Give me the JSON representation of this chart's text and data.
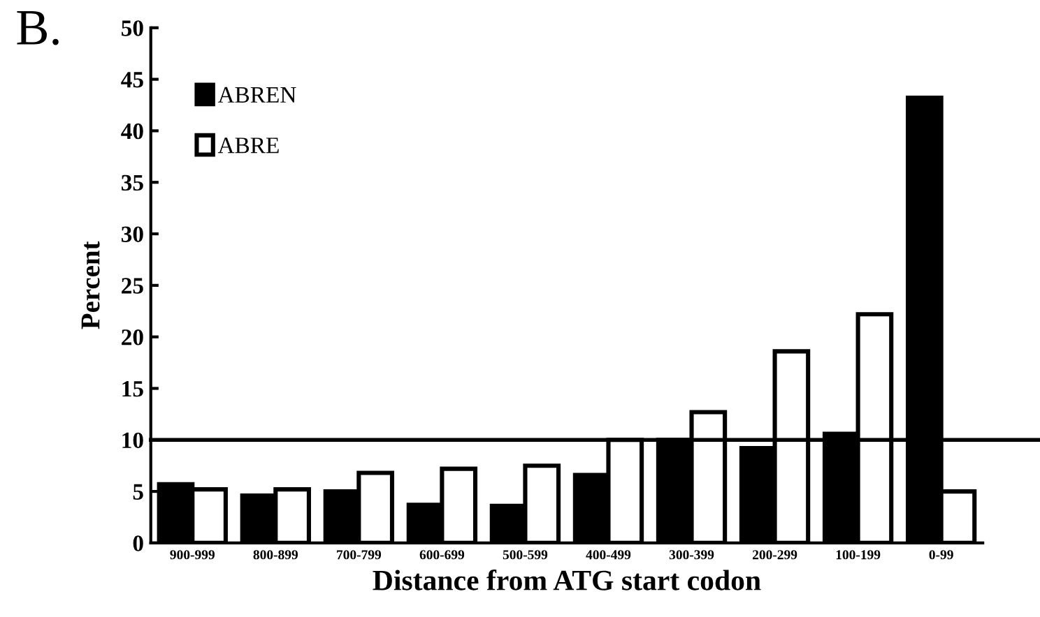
{
  "chart_data": {
    "type": "bar",
    "xlabel": "Distance from ATG start codon",
    "ylabel": "Percent",
    "annotations": [
      "B."
    ],
    "categories": [
      "900-999",
      "800-899",
      "700-799",
      "600-699",
      "500-599",
      "400-499",
      "300-399",
      "200-299",
      "100-199",
      "0-99"
    ],
    "series": [
      {
        "name": "ABREN",
        "color": "#000000",
        "values": [
          5.7,
          4.6,
          5.0,
          3.7,
          3.6,
          6.6,
          10.0,
          9.2,
          10.6,
          43.2
        ]
      },
      {
        "name": "ABRE",
        "color": "#ffffff",
        "values": [
          5.2,
          5.2,
          6.8,
          7.2,
          7.5,
          10.0,
          12.7,
          18.6,
          22.2,
          5.0
        ]
      }
    ],
    "ylim": [
      0,
      50
    ],
    "yticks": [
      0,
      5,
      10,
      15,
      20,
      25,
      30,
      35,
      40,
      45,
      50
    ],
    "ref_lines": [
      {
        "axis": "y",
        "value": 10,
        "color": "#000000",
        "line_style": "solid"
      }
    ],
    "grid": false,
    "legend": "top left"
  }
}
